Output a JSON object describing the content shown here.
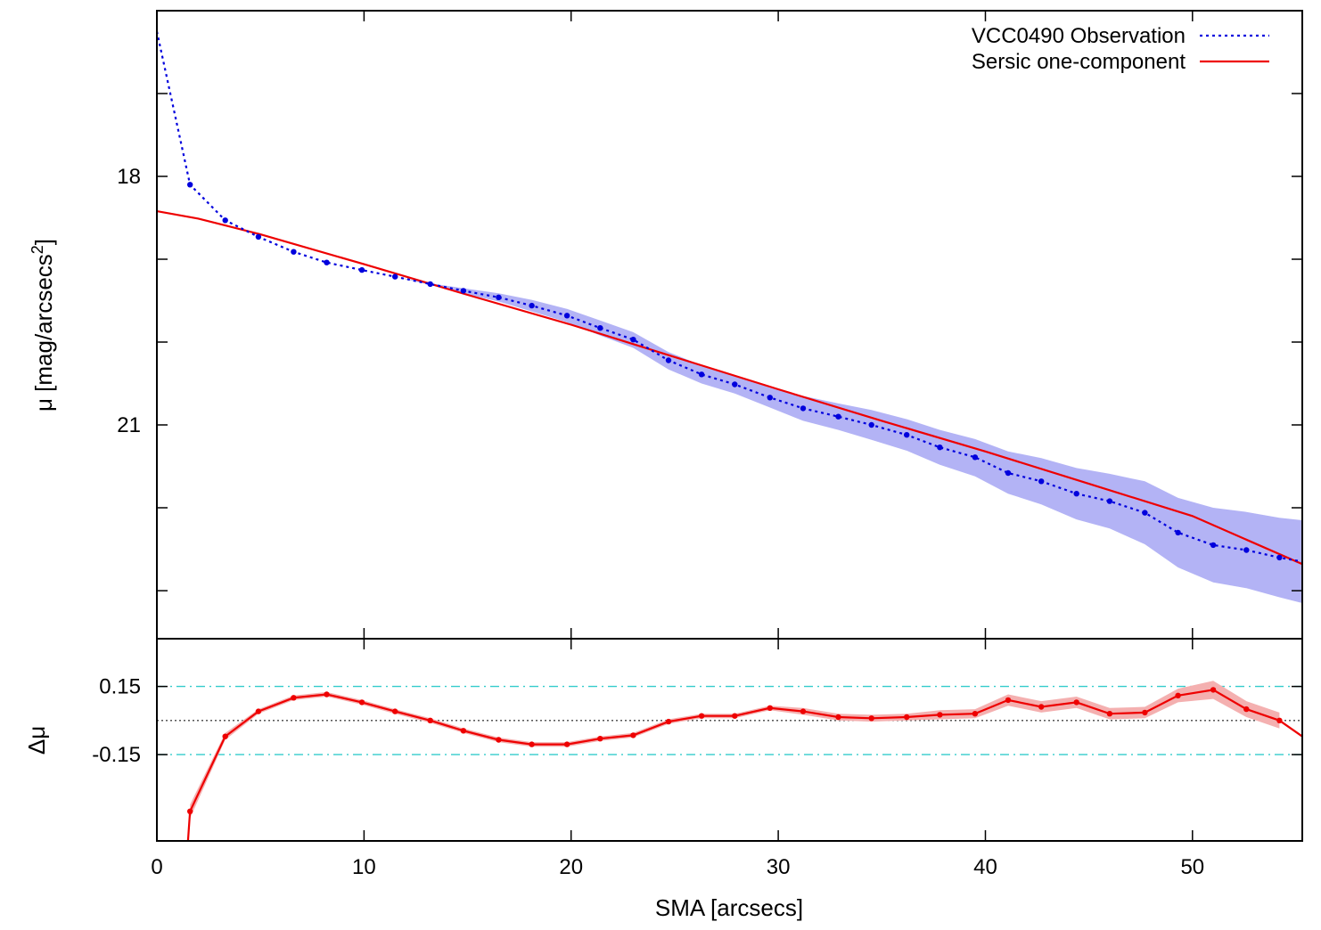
{
  "chart_data": [
    {
      "panel": "profile",
      "type": "line",
      "ylabel": "μ [mag/arcsecs²]",
      "ylabel_main": "μ [mag/arcsecs",
      "ylabel_sup": "2",
      "ylabel_close": "]",
      "xlim": [
        0,
        55.3
      ],
      "ylim": [
        23.58,
        16.0
      ],
      "y_inverted": true,
      "yticks": [
        17.0,
        18.0,
        19.0,
        20.0,
        21.0,
        22.0,
        23.0
      ],
      "ytick_labels": [
        {
          "value": 18,
          "label": "18"
        },
        {
          "value": 21,
          "label": "21"
        }
      ],
      "xticks": [
        0,
        10,
        20,
        30,
        40,
        50
      ],
      "grid": false,
      "legend_position": "top-right",
      "series": [
        {
          "name": "VCC0490 Observation",
          "style": "dotted",
          "color": "#0000dd",
          "band_color": "#b3b3f5",
          "x": [
            0.0,
            1.6,
            3.3,
            4.9,
            6.6,
            8.2,
            9.9,
            11.5,
            13.2,
            14.8,
            16.5,
            18.1,
            19.8,
            21.4,
            23.0,
            24.7,
            26.3,
            27.9,
            29.6,
            31.2,
            32.9,
            34.5,
            36.2,
            37.8,
            39.5,
            41.1,
            42.7,
            44.4,
            46.0,
            47.7,
            49.3,
            51.0,
            52.6,
            54.2,
            55.3
          ],
          "y": [
            16.25,
            18.1,
            18.53,
            18.73,
            18.91,
            19.04,
            19.13,
            19.21,
            19.3,
            19.38,
            19.46,
            19.56,
            19.68,
            19.83,
            19.97,
            20.22,
            20.39,
            20.51,
            20.67,
            20.8,
            20.9,
            21.0,
            21.12,
            21.27,
            21.39,
            21.58,
            21.68,
            21.83,
            21.92,
            22.06,
            22.3,
            22.45,
            22.51,
            22.6,
            22.65
          ],
          "band_lo": [
            16.25,
            18.1,
            18.53,
            18.73,
            18.91,
            19.04,
            19.13,
            19.21,
            19.29,
            19.35,
            19.41,
            19.49,
            19.6,
            19.74,
            19.88,
            20.12,
            20.28,
            20.4,
            20.55,
            20.65,
            20.74,
            20.82,
            20.93,
            21.06,
            21.17,
            21.32,
            21.4,
            21.52,
            21.59,
            21.68,
            21.88,
            22.0,
            22.05,
            22.12,
            22.15
          ],
          "band_hi": [
            16.25,
            18.1,
            18.53,
            18.73,
            18.91,
            19.04,
            19.13,
            19.21,
            19.31,
            19.41,
            19.51,
            19.63,
            19.76,
            19.92,
            20.07,
            20.33,
            20.5,
            20.62,
            20.79,
            20.95,
            21.06,
            21.18,
            21.31,
            21.48,
            21.62,
            21.83,
            21.96,
            22.14,
            22.25,
            22.44,
            22.72,
            22.9,
            22.97,
            23.08,
            23.15
          ]
        },
        {
          "name": "Sersic one-component",
          "style": "solid",
          "color": "#ee0000",
          "x": [
            0.0,
            2.0,
            5.0,
            10.0,
            15.0,
            20.0,
            25.0,
            30.0,
            35.0,
            40.0,
            45.0,
            50.0,
            55.3
          ],
          "y": [
            18.42,
            18.51,
            18.7,
            19.06,
            19.43,
            19.79,
            20.18,
            20.57,
            20.95,
            21.32,
            21.71,
            22.1,
            22.68
          ]
        }
      ]
    },
    {
      "panel": "residual",
      "type": "line",
      "ylabel": "Δμ",
      "xlabel": "SMA [arcsecs]",
      "xlim": [
        0,
        55.3
      ],
      "ylim": [
        -0.53,
        0.36
      ],
      "ytick_labels": [
        {
          "value": 0.15,
          "label": "0.15"
        },
        {
          "value": -0.15,
          "label": "-0.15"
        }
      ],
      "xticks": [
        0,
        10,
        20,
        30,
        40,
        50
      ],
      "xtick_labels": [
        "0",
        "10",
        "20",
        "30",
        "40",
        "50"
      ],
      "reference_lines": [
        {
          "value": 0.15,
          "style": "dash-dot",
          "color": "#33cccc"
        },
        {
          "value": -0.15,
          "style": "dash-dot",
          "color": "#33cccc"
        },
        {
          "value": 0.0,
          "style": "dotted",
          "color": "#444444"
        }
      ],
      "series": [
        {
          "name": "",
          "color": "#ee0000",
          "band_color": "#f4b0b0",
          "x": [
            1.6,
            3.3,
            4.9,
            6.6,
            8.2,
            9.9,
            11.5,
            13.2,
            14.8,
            16.5,
            18.1,
            19.8,
            21.4,
            23.0,
            24.7,
            26.3,
            27.9,
            29.6,
            31.2,
            32.9,
            34.5,
            36.2,
            37.8,
            39.5,
            41.1,
            42.7,
            44.4,
            46.0,
            47.7,
            49.3,
            51.0,
            52.6,
            54.2
          ],
          "y": [
            -0.4,
            -0.07,
            0.04,
            0.1,
            0.115,
            0.08,
            0.04,
            0.0,
            -0.045,
            -0.085,
            -0.105,
            -0.105,
            -0.08,
            -0.065,
            -0.005,
            0.02,
            0.02,
            0.055,
            0.04,
            0.015,
            0.01,
            0.015,
            0.025,
            0.03,
            0.09,
            0.06,
            0.08,
            0.03,
            0.035,
            0.11,
            0.135,
            0.05,
            0.0
          ],
          "band": [
            0.03,
            0.015,
            0.01,
            0.01,
            0.01,
            0.01,
            0.01,
            0.01,
            0.01,
            0.01,
            0.01,
            0.01,
            0.01,
            0.01,
            0.01,
            0.01,
            0.01,
            0.01,
            0.015,
            0.015,
            0.015,
            0.015,
            0.02,
            0.02,
            0.025,
            0.025,
            0.025,
            0.025,
            0.025,
            0.03,
            0.04,
            0.035,
            0.035
          ]
        }
      ]
    }
  ],
  "legend": {
    "observation_label": "VCC0490 Observation",
    "model_label": "Sersic one-component"
  }
}
